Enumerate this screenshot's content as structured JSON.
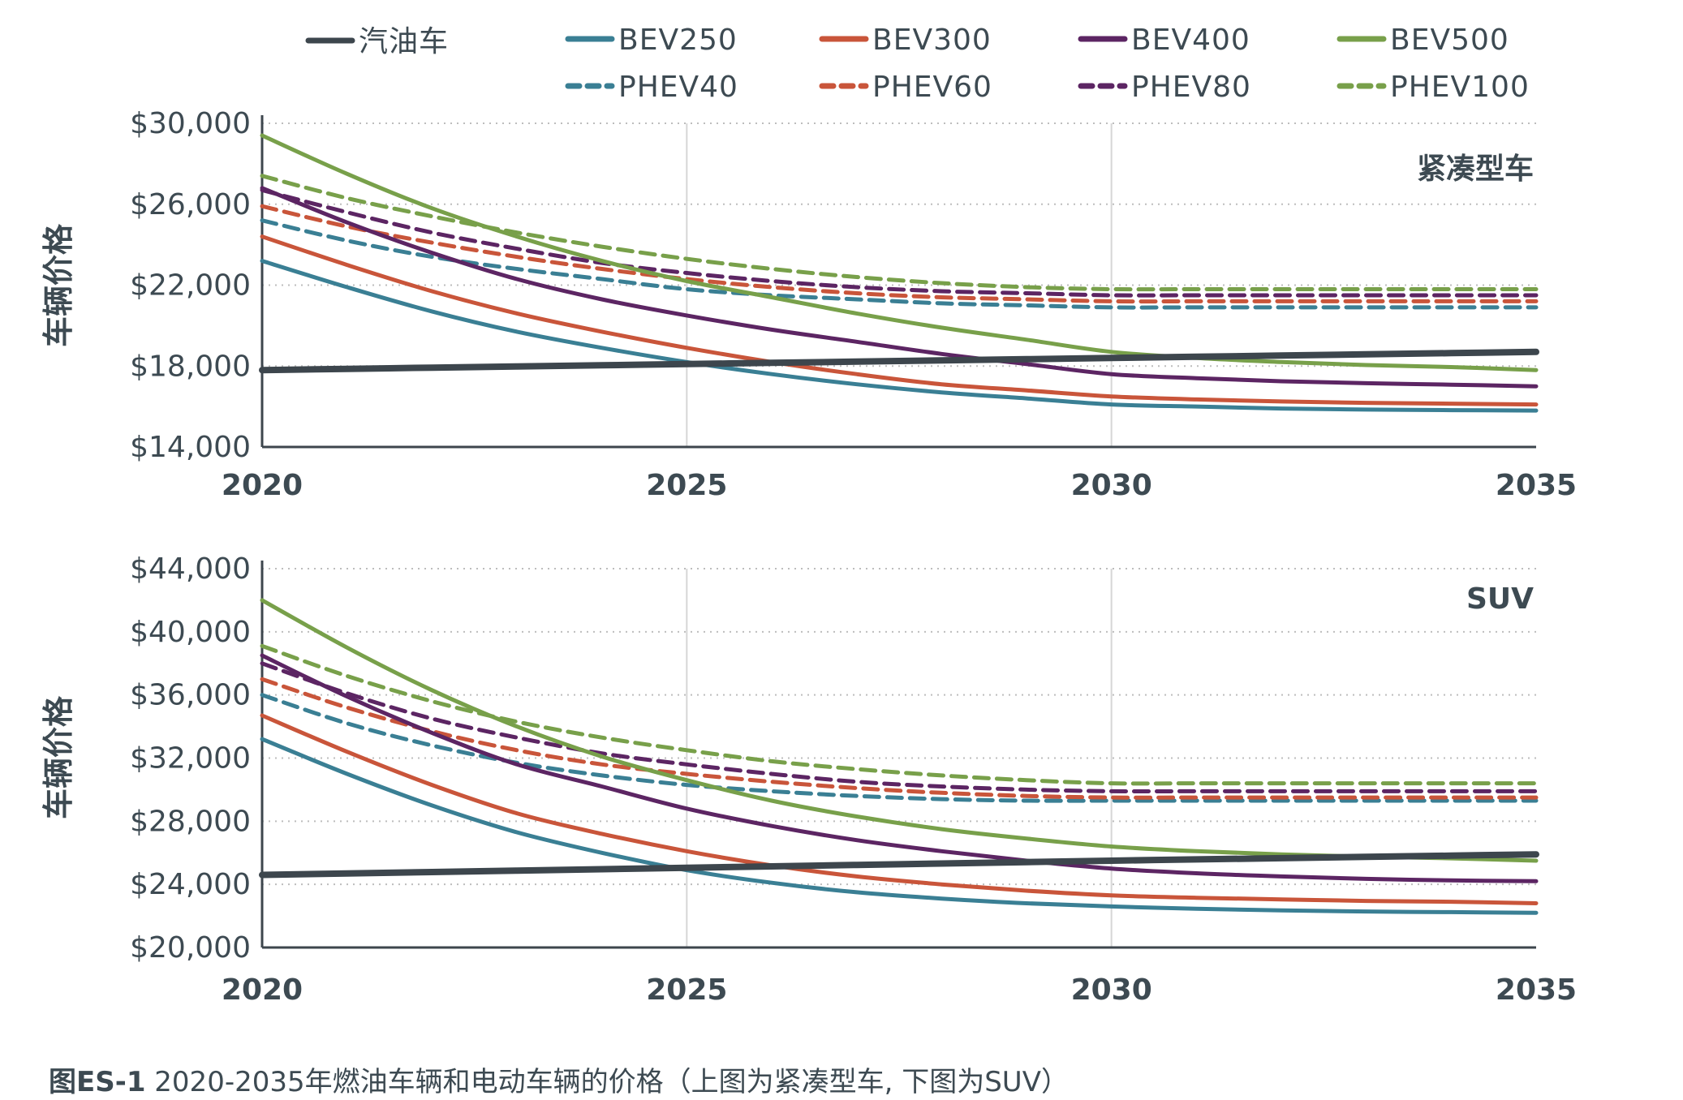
{
  "caption": {
    "prefix": "图ES-1",
    "text": " 2020-2035年燃油车辆和电动车辆的价格（上图为紧凑型车, 下图为SUV）"
  },
  "colors": {
    "gasoline": "#3d464d",
    "BEV250": "#3a7f94",
    "BEV300": "#c9553a",
    "BEV400": "#5c2563",
    "BEV500": "#78a04a",
    "grid": "#c8c8c8"
  },
  "chart_data": [
    {
      "type": "line",
      "panel_label": "紧凑型车",
      "ylabel": "车辆价格",
      "xlabel": "",
      "x": [
        2020,
        2021,
        2022,
        2023,
        2024,
        2025,
        2026,
        2027,
        2028,
        2029,
        2030,
        2031,
        2032,
        2033,
        2034,
        2035
      ],
      "x_ticks": [
        "2020",
        "2025",
        "2030",
        "2035"
      ],
      "xlim": [
        2020,
        2035
      ],
      "ylim": [
        14000,
        30000
      ],
      "y_ticks": [
        "$14,000",
        "$18,000",
        "$22,000",
        "$26,000",
        "$30,000"
      ],
      "y_tick_values": [
        14000,
        18000,
        22000,
        26000,
        30000
      ],
      "grid": true,
      "series": [
        {
          "name": "汽油车",
          "style": "solid",
          "color": "#3d464d",
          "values": [
            17800,
            17860,
            17920,
            17980,
            18040,
            18100,
            18160,
            18220,
            18280,
            18340,
            18400,
            18460,
            18520,
            18580,
            18640,
            18700
          ]
        },
        {
          "name": "BEV250",
          "style": "solid",
          "color": "#3a7f94",
          "values": [
            23200,
            21900,
            20700,
            19700,
            18900,
            18200,
            17600,
            17100,
            16700,
            16400,
            16100,
            16000,
            15900,
            15850,
            15820,
            15800
          ]
        },
        {
          "name": "BEV300",
          "style": "solid",
          "color": "#c9553a",
          "values": [
            24400,
            23000,
            21700,
            20600,
            19700,
            18900,
            18200,
            17600,
            17100,
            16800,
            16500,
            16350,
            16250,
            16180,
            16140,
            16100
          ]
        },
        {
          "name": "BEV400",
          "style": "solid",
          "color": "#5c2563",
          "values": [
            26800,
            25100,
            23600,
            22300,
            21300,
            20500,
            19800,
            19200,
            18600,
            18100,
            17600,
            17400,
            17250,
            17150,
            17080,
            17000
          ]
        },
        {
          "name": "BEV500",
          "style": "solid",
          "color": "#78a04a",
          "values": [
            29400,
            27500,
            25800,
            24400,
            23200,
            22200,
            21400,
            20600,
            19900,
            19300,
            18700,
            18400,
            18200,
            18050,
            17950,
            17800
          ]
        },
        {
          "name": "PHEV40",
          "style": "dashed",
          "color": "#3a7f94",
          "values": [
            25200,
            24200,
            23400,
            22800,
            22300,
            21800,
            21500,
            21300,
            21100,
            21000,
            20900,
            20900,
            20900,
            20900,
            20900,
            20900
          ]
        },
        {
          "name": "PHEV60",
          "style": "dashed",
          "color": "#c9553a",
          "values": [
            25900,
            24900,
            24100,
            23400,
            22800,
            22300,
            21900,
            21600,
            21400,
            21300,
            21200,
            21200,
            21200,
            21200,
            21200,
            21200
          ]
        },
        {
          "name": "PHEV80",
          "style": "dashed",
          "color": "#5c2563",
          "values": [
            26700,
            25600,
            24600,
            23800,
            23100,
            22600,
            22200,
            21900,
            21700,
            21600,
            21500,
            21500,
            21500,
            21500,
            21500,
            21500
          ]
        },
        {
          "name": "PHEV100",
          "style": "dashed",
          "color": "#78a04a",
          "values": [
            27400,
            26300,
            25400,
            24600,
            23900,
            23300,
            22800,
            22400,
            22100,
            21900,
            21800,
            21800,
            21800,
            21800,
            21800,
            21800
          ]
        }
      ]
    },
    {
      "type": "line",
      "panel_label": "SUV",
      "ylabel": "车辆价格",
      "xlabel": "",
      "x": [
        2020,
        2021,
        2022,
        2023,
        2024,
        2025,
        2026,
        2027,
        2028,
        2029,
        2030,
        2031,
        2032,
        2033,
        2034,
        2035
      ],
      "x_ticks": [
        "2020",
        "2025",
        "2030",
        "2035"
      ],
      "xlim": [
        2020,
        2035
      ],
      "ylim": [
        20000,
        44000
      ],
      "y_ticks": [
        "$20,000",
        "$24,000",
        "$28,000",
        "$32,000",
        "$36,000",
        "$40,000",
        "$44,000"
      ],
      "y_tick_values": [
        20000,
        24000,
        28000,
        32000,
        36000,
        40000,
        44000
      ],
      "grid": true,
      "series": [
        {
          "name": "汽油车",
          "style": "solid",
          "color": "#3d464d",
          "values": [
            24600,
            24690,
            24780,
            24870,
            24960,
            25050,
            25140,
            25230,
            25320,
            25410,
            25500,
            25580,
            25660,
            25740,
            25820,
            25900
          ]
        },
        {
          "name": "BEV250",
          "style": "solid",
          "color": "#3a7f94",
          "values": [
            33200,
            31000,
            29000,
            27300,
            26000,
            24900,
            24100,
            23500,
            23100,
            22800,
            22600,
            22450,
            22350,
            22280,
            22240,
            22200
          ]
        },
        {
          "name": "BEV300",
          "style": "solid",
          "color": "#c9553a",
          "values": [
            34700,
            32400,
            30300,
            28500,
            27200,
            26100,
            25200,
            24500,
            24000,
            23600,
            23300,
            23150,
            23050,
            22950,
            22900,
            22800
          ]
        },
        {
          "name": "BEV400",
          "style": "solid",
          "color": "#5c2563",
          "values": [
            38500,
            35900,
            33600,
            31600,
            30200,
            28800,
            27700,
            26800,
            26100,
            25500,
            25000,
            24700,
            24500,
            24350,
            24250,
            24200
          ]
        },
        {
          "name": "BEV500",
          "style": "solid",
          "color": "#78a04a",
          "values": [
            42000,
            39000,
            36300,
            34000,
            32100,
            30600,
            29300,
            28300,
            27500,
            26900,
            26400,
            26100,
            25900,
            25750,
            25650,
            25500
          ]
        },
        {
          "name": "PHEV40",
          "style": "dashed",
          "color": "#3a7f94",
          "values": [
            36000,
            34200,
            32800,
            31700,
            30900,
            30300,
            29900,
            29600,
            29400,
            29300,
            29300,
            29300,
            29300,
            29300,
            29300,
            29300
          ]
        },
        {
          "name": "PHEV60",
          "style": "dashed",
          "color": "#c9553a",
          "values": [
            37000,
            35200,
            33700,
            32500,
            31600,
            31000,
            30500,
            30100,
            29800,
            29600,
            29500,
            29500,
            29500,
            29500,
            29500,
            29500
          ]
        },
        {
          "name": "PHEV80",
          "style": "dashed",
          "color": "#5c2563",
          "values": [
            38000,
            36100,
            34500,
            33300,
            32300,
            31600,
            31000,
            30500,
            30200,
            30000,
            29900,
            29900,
            29900,
            29900,
            29900,
            29900
          ]
        },
        {
          "name": "PHEV100",
          "style": "dashed",
          "color": "#78a04a",
          "values": [
            39100,
            37200,
            35600,
            34300,
            33300,
            32500,
            31800,
            31300,
            30900,
            30600,
            30400,
            30400,
            30400,
            30400,
            30400,
            30400
          ]
        }
      ]
    }
  ]
}
